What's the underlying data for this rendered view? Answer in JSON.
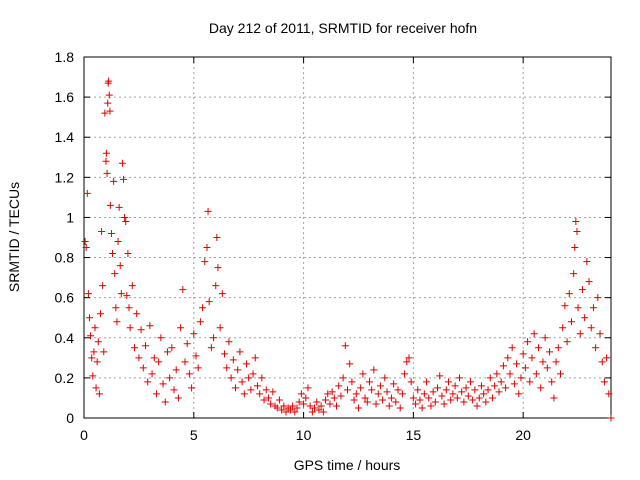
{
  "chart_data": {
    "type": "scatter",
    "title": "Day 212 of 2011, SRMTID for receiver hofn",
    "xlabel": "GPS time / hours",
    "ylabel": "SRMTID / TECUs",
    "xlim": [
      0,
      24
    ],
    "ylim": [
      0,
      1.8
    ],
    "xticks": [
      0,
      5,
      10,
      15,
      20
    ],
    "xtick_labels": [
      "0",
      "5",
      "10",
      "15",
      "20"
    ],
    "yticks": [
      0,
      0.2,
      0.4,
      0.6,
      0.8,
      1,
      1.2,
      1.4,
      1.6,
      1.8
    ],
    "ytick_labels": [
      "0",
      "0.2",
      "0.4",
      "0.6",
      "0.8",
      "1",
      "1.2",
      "1.4",
      "1.6",
      "1.8"
    ],
    "grid": true,
    "marker": "plus",
    "series": [
      {
        "name": "SRMTID",
        "color": "#e00000",
        "points": [
          [
            0.05,
            0.88
          ],
          [
            0.1,
            0.85
          ],
          [
            0.15,
            1.12
          ],
          [
            0.2,
            0.62
          ],
          [
            0.25,
            0.5
          ],
          [
            0.3,
            0.41
          ],
          [
            0.35,
            0.3
          ],
          [
            0.4,
            0.21
          ],
          [
            0.45,
            0.33
          ],
          [
            0.5,
            0.45
          ],
          [
            0.55,
            0.15
          ],
          [
            0.6,
            0.28
          ],
          [
            0.65,
            0.38
          ],
          [
            0.7,
            0.12
          ],
          [
            0.75,
            0.52
          ],
          [
            0.8,
            0.93
          ],
          [
            0.85,
            0.66
          ],
          [
            0.9,
            0.33
          ],
          [
            0.95,
            1.52
          ],
          [
            1.0,
            1.28
          ],
          [
            1.02,
            1.32
          ],
          [
            1.05,
            1.22
          ],
          [
            1.08,
            1.57
          ],
          [
            1.1,
            1.67
          ],
          [
            1.12,
            1.68
          ],
          [
            1.15,
            1.61
          ],
          [
            1.18,
            1.53
          ],
          [
            1.2,
            1.06
          ],
          [
            1.25,
            0.92
          ],
          [
            1.3,
            0.82
          ],
          [
            1.35,
            1.18
          ],
          [
            1.4,
            0.72
          ],
          [
            1.45,
            0.55
          ],
          [
            1.5,
            0.48
          ],
          [
            1.55,
            0.88
          ],
          [
            1.6,
            1.05
          ],
          [
            1.65,
            0.76
          ],
          [
            1.7,
            0.62
          ],
          [
            1.75,
            1.27
          ],
          [
            1.8,
            1.19
          ],
          [
            1.85,
            1.0
          ],
          [
            1.9,
            0.98
          ],
          [
            1.95,
            0.61
          ],
          [
            2.0,
            0.82
          ],
          [
            2.05,
            0.55
          ],
          [
            2.1,
            0.45
          ],
          [
            2.2,
            0.66
          ],
          [
            2.3,
            0.35
          ],
          [
            2.4,
            0.52
          ],
          [
            2.5,
            0.3
          ],
          [
            2.6,
            0.44
          ],
          [
            2.7,
            0.25
          ],
          [
            2.8,
            0.36
          ],
          [
            2.9,
            0.18
          ],
          [
            3.0,
            0.46
          ],
          [
            3.1,
            0.22
          ],
          [
            3.2,
            0.3
          ],
          [
            3.3,
            0.12
          ],
          [
            3.4,
            0.28
          ],
          [
            3.5,
            0.4
          ],
          [
            3.6,
            0.17
          ],
          [
            3.7,
            0.08
          ],
          [
            3.8,
            0.33
          ],
          [
            3.9,
            0.2
          ],
          [
            4.0,
            0.35
          ],
          [
            4.1,
            0.14
          ],
          [
            4.2,
            0.24
          ],
          [
            4.3,
            0.1
          ],
          [
            4.4,
            0.45
          ],
          [
            4.5,
            0.64
          ],
          [
            4.6,
            0.28
          ],
          [
            4.7,
            0.37
          ],
          [
            4.8,
            0.22
          ],
          [
            4.9,
            0.15
          ],
          [
            5.0,
            0.42
          ],
          [
            5.1,
            0.31
          ],
          [
            5.2,
            0.25
          ],
          [
            5.3,
            0.48
          ],
          [
            5.4,
            0.55
          ],
          [
            5.5,
            0.78
          ],
          [
            5.6,
            0.85
          ],
          [
            5.65,
            1.03
          ],
          [
            5.7,
            0.58
          ],
          [
            5.8,
            0.35
          ],
          [
            5.9,
            0.4
          ],
          [
            6.0,
            0.66
          ],
          [
            6.05,
            0.9
          ],
          [
            6.1,
            0.75
          ],
          [
            6.2,
            0.45
          ],
          [
            6.3,
            0.62
          ],
          [
            6.4,
            0.32
          ],
          [
            6.5,
            0.25
          ],
          [
            6.6,
            0.38
          ],
          [
            6.7,
            0.2
          ],
          [
            6.8,
            0.29
          ],
          [
            6.9,
            0.15
          ],
          [
            7.0,
            0.24
          ],
          [
            7.1,
            0.33
          ],
          [
            7.2,
            0.18
          ],
          [
            7.3,
            0.12
          ],
          [
            7.4,
            0.27
          ],
          [
            7.5,
            0.2
          ],
          [
            7.6,
            0.14
          ],
          [
            7.7,
            0.22
          ],
          [
            7.8,
            0.3
          ],
          [
            7.9,
            0.16
          ],
          [
            8.0,
            0.12
          ],
          [
            8.1,
            0.2
          ],
          [
            8.2,
            0.09
          ],
          [
            8.3,
            0.14
          ],
          [
            8.4,
            0.1
          ],
          [
            8.5,
            0.07
          ],
          [
            8.6,
            0.13
          ],
          [
            8.7,
            0.06
          ],
          [
            8.8,
            0.05
          ],
          [
            8.9,
            0.09
          ],
          [
            9.0,
            0.04
          ],
          [
            9.1,
            0.06
          ],
          [
            9.2,
            0.03
          ],
          [
            9.3,
            0.05
          ],
          [
            9.4,
            0.04
          ],
          [
            9.5,
            0.06
          ],
          [
            9.6,
            0.03
          ],
          [
            9.7,
            0.05
          ],
          [
            9.8,
            0.08
          ],
          [
            9.9,
            0.12
          ],
          [
            10.0,
            0.07
          ],
          [
            10.1,
            0.1
          ],
          [
            10.2,
            0.15
          ],
          [
            10.3,
            0.06
          ],
          [
            10.4,
            0.03
          ],
          [
            10.5,
            0.05
          ],
          [
            10.6,
            0.08
          ],
          [
            10.7,
            0.04
          ],
          [
            10.8,
            0.06
          ],
          [
            10.9,
            0.03
          ],
          [
            11.0,
            0.09
          ],
          [
            11.1,
            0.12
          ],
          [
            11.2,
            0.07
          ],
          [
            11.3,
            0.13
          ],
          [
            11.4,
            0.1
          ],
          [
            11.5,
            0.06
          ],
          [
            11.6,
            0.16
          ],
          [
            11.7,
            0.11
          ],
          [
            11.8,
            0.2
          ],
          [
            11.9,
            0.36
          ],
          [
            12.0,
            0.14
          ],
          [
            12.1,
            0.27
          ],
          [
            12.2,
            0.18
          ],
          [
            12.3,
            0.09
          ],
          [
            12.4,
            0.12
          ],
          [
            12.5,
            0.05
          ],
          [
            12.6,
            0.15
          ],
          [
            12.7,
            0.22
          ],
          [
            12.8,
            0.1
          ],
          [
            12.9,
            0.08
          ],
          [
            13.0,
            0.18
          ],
          [
            13.1,
            0.14
          ],
          [
            13.2,
            0.24
          ],
          [
            13.3,
            0.07
          ],
          [
            13.4,
            0.12
          ],
          [
            13.5,
            0.16
          ],
          [
            13.6,
            0.09
          ],
          [
            13.7,
            0.2
          ],
          [
            13.8,
            0.13
          ],
          [
            13.9,
            0.06
          ],
          [
            14.0,
            0.1
          ],
          [
            14.1,
            0.17
          ],
          [
            14.2,
            0.08
          ],
          [
            14.3,
            0.14
          ],
          [
            14.4,
            0.05
          ],
          [
            14.5,
            0.12
          ],
          [
            14.6,
            0.22
          ],
          [
            14.7,
            0.28
          ],
          [
            14.8,
            0.3
          ],
          [
            14.9,
            0.18
          ],
          [
            15.0,
            0.1
          ],
          [
            15.1,
            0.07
          ],
          [
            15.2,
            0.14
          ],
          [
            15.3,
            0.09
          ],
          [
            15.4,
            0.05
          ],
          [
            15.5,
            0.12
          ],
          [
            15.6,
            0.18
          ],
          [
            15.7,
            0.1
          ],
          [
            15.8,
            0.06
          ],
          [
            15.9,
            0.13
          ],
          [
            16.0,
            0.08
          ],
          [
            16.1,
            0.15
          ],
          [
            16.2,
            0.21
          ],
          [
            16.3,
            0.11
          ],
          [
            16.4,
            0.07
          ],
          [
            16.5,
            0.14
          ],
          [
            16.6,
            0.18
          ],
          [
            16.7,
            0.09
          ],
          [
            16.8,
            0.12
          ],
          [
            16.9,
            0.16
          ],
          [
            17.0,
            0.1
          ],
          [
            17.1,
            0.2
          ],
          [
            17.2,
            0.13
          ],
          [
            17.3,
            0.08
          ],
          [
            17.4,
            0.15
          ],
          [
            17.5,
            0.11
          ],
          [
            17.6,
            0.18
          ],
          [
            17.7,
            0.09
          ],
          [
            17.8,
            0.14
          ],
          [
            17.9,
            0.06
          ],
          [
            18.0,
            0.1
          ],
          [
            18.1,
            0.16
          ],
          [
            18.2,
            0.12
          ],
          [
            18.3,
            0.08
          ],
          [
            18.4,
            0.14
          ],
          [
            18.5,
            0.2
          ],
          [
            18.6,
            0.1
          ],
          [
            18.7,
            0.16
          ],
          [
            18.8,
            0.22
          ],
          [
            18.9,
            0.13
          ],
          [
            19.0,
            0.18
          ],
          [
            19.1,
            0.26
          ],
          [
            19.2,
            0.15
          ],
          [
            19.3,
            0.3
          ],
          [
            19.4,
            0.22
          ],
          [
            19.5,
            0.35
          ],
          [
            19.6,
            0.17
          ],
          [
            19.7,
            0.27
          ],
          [
            19.8,
            0.12
          ],
          [
            19.9,
            0.2
          ],
          [
            20.0,
            0.32
          ],
          [
            20.1,
            0.25
          ],
          [
            20.2,
            0.38
          ],
          [
            20.3,
            0.18
          ],
          [
            20.4,
            0.3
          ],
          [
            20.5,
            0.42
          ],
          [
            20.6,
            0.22
          ],
          [
            20.7,
            0.35
          ],
          [
            20.8,
            0.15
          ],
          [
            20.9,
            0.28
          ],
          [
            21.0,
            0.4
          ],
          [
            21.1,
            0.25
          ],
          [
            21.2,
            0.33
          ],
          [
            21.3,
            0.18
          ],
          [
            21.4,
            0.1
          ],
          [
            21.5,
            0.28
          ],
          [
            21.6,
            0.35
          ],
          [
            21.7,
            0.22
          ],
          [
            21.8,
            0.45
          ],
          [
            21.9,
            0.56
          ],
          [
            22.0,
            0.38
          ],
          [
            22.1,
            0.62
          ],
          [
            22.2,
            0.48
          ],
          [
            22.3,
            0.72
          ],
          [
            22.35,
            0.85
          ],
          [
            22.4,
            0.98
          ],
          [
            22.45,
            0.93
          ],
          [
            22.5,
            0.55
          ],
          [
            22.6,
            0.42
          ],
          [
            22.7,
            0.64
          ],
          [
            22.8,
            0.5
          ],
          [
            22.9,
            0.78
          ],
          [
            23.0,
            0.68
          ],
          [
            23.1,
            0.45
          ],
          [
            23.2,
            0.55
          ],
          [
            23.3,
            0.35
          ],
          [
            23.4,
            0.6
          ],
          [
            23.5,
            0.42
          ],
          [
            23.6,
            0.28
          ],
          [
            23.7,
            0.18
          ],
          [
            23.8,
            0.3
          ],
          [
            23.9,
            0.12
          ],
          [
            24.0,
            0.0
          ]
        ]
      }
    ]
  }
}
